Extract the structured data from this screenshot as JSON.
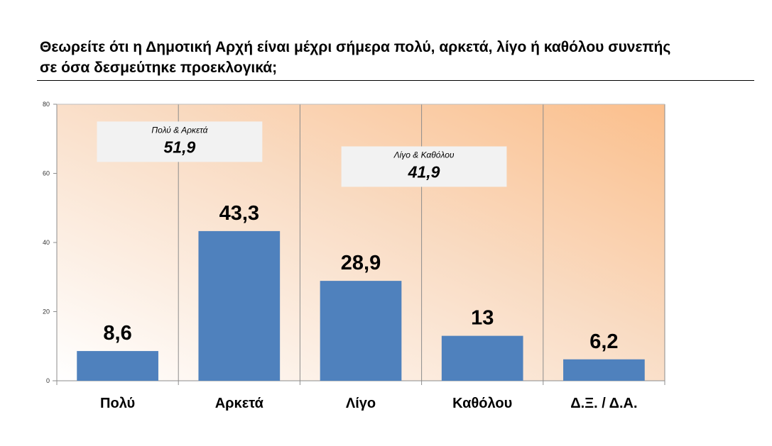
{
  "header": {
    "title_line1": "Θεωρείτε ότι η Δημοτική Αρχή είναι μέχρι σήμερα πολύ, αρκετά, λίγο ή καθόλου συνεπής",
    "title_line2": "σε όσα δεσμεύτηκε προεκλογικά;"
  },
  "chart_data": {
    "type": "bar",
    "title": "Θεωρείτε ότι η Δημοτική Αρχή είναι μέχρι σήμερα πολύ, αρκετά, λίγο ή καθόλου συνεπής σε όσα δεσμεύτηκε προεκλογικά;",
    "categories": [
      "Πολύ",
      "Αρκετά",
      "Λίγο",
      "Καθόλου",
      "Δ.Ξ. / Δ.Α."
    ],
    "values": [
      8.6,
      43.3,
      28.9,
      13,
      6.2
    ],
    "value_labels": [
      "8,6",
      "43,3",
      "28,9",
      "13",
      "6,2"
    ],
    "ylim": [
      0,
      80
    ],
    "yticks": [
      0,
      20,
      40,
      60,
      80
    ],
    "xlabel": "",
    "ylabel": "",
    "grid": "vertical separators between categories",
    "annotations": [
      {
        "caption": "Πολύ & Αρκετά",
        "value": "51,9"
      },
      {
        "caption": "Λίγο & Καθόλου",
        "value": "41,9"
      }
    ],
    "colors": {
      "bar": "#4f81bd",
      "plot_bg_light": "#ffffff",
      "plot_bg_accent": "#fbbf8c",
      "callout_bg": "#f2f2f2"
    }
  }
}
